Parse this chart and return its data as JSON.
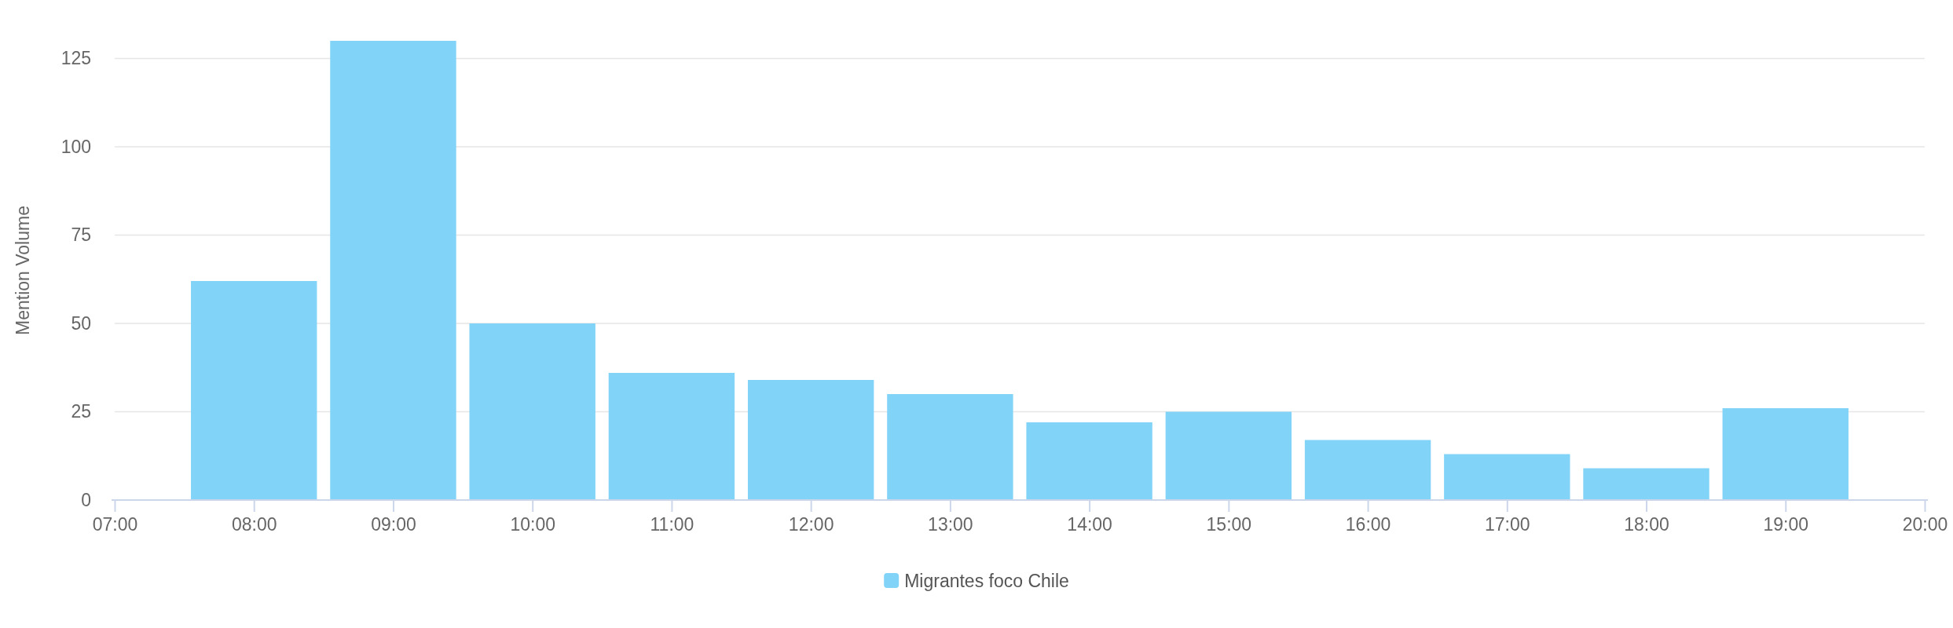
{
  "chart_data": {
    "type": "bar",
    "ylabel": "Mention Volume",
    "x": [
      8,
      9,
      10,
      11,
      12,
      13,
      14,
      15,
      16,
      17,
      18,
      19
    ],
    "series": [
      {
        "name": "Migrantes foco Chile",
        "color": "#81d4f8",
        "values": [
          62,
          130,
          50,
          36,
          34,
          30,
          22,
          25,
          17,
          13,
          9,
          26
        ]
      }
    ],
    "xlim": [
      7,
      20
    ],
    "xticks": [
      {
        "value": 7,
        "label": "07:00"
      },
      {
        "value": 8,
        "label": "08:00"
      },
      {
        "value": 9,
        "label": "09:00"
      },
      {
        "value": 10,
        "label": "10:00"
      },
      {
        "value": 11,
        "label": "11:00"
      },
      {
        "value": 12,
        "label": "12:00"
      },
      {
        "value": 13,
        "label": "13:00"
      },
      {
        "value": 14,
        "label": "14:00"
      },
      {
        "value": 15,
        "label": "15:00"
      },
      {
        "value": 16,
        "label": "16:00"
      },
      {
        "value": 17,
        "label": "17:00"
      },
      {
        "value": 18,
        "label": "18:00"
      },
      {
        "value": 19,
        "label": "19:00"
      },
      {
        "value": 20,
        "label": "20:00"
      }
    ],
    "ylim": [
      0,
      130
    ],
    "yticks": [
      0,
      25,
      50,
      75,
      100,
      125
    ],
    "grid": "y",
    "legend": "bottom"
  }
}
